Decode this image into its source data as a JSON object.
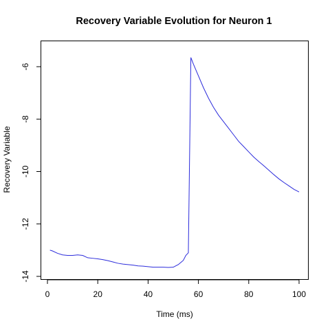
{
  "chart_data": {
    "type": "line",
    "title": "Recovery Variable Evolution for Neuron 1",
    "xlabel": "Time (ms)",
    "ylabel": "Recovery Variable",
    "xlim": [
      0,
      100
    ],
    "ylim": [
      -14,
      -5.3
    ],
    "xticks": [
      0,
      20,
      40,
      60,
      80,
      100
    ],
    "yticks": [
      -14,
      -12,
      -10,
      -8,
      -6
    ],
    "grid": false,
    "line_color": "#2b2bdb",
    "series": [
      {
        "x": [
          1,
          2,
          4,
          6,
          8,
          10,
          12,
          14,
          16,
          18,
          20,
          22,
          24,
          26,
          28,
          30,
          32,
          34,
          36,
          38,
          40,
          42,
          44,
          46,
          48,
          50,
          52,
          54,
          55,
          56,
          57,
          58,
          60,
          62,
          64,
          66,
          68,
          70,
          72,
          74,
          76,
          78,
          80,
          82,
          84,
          86,
          88,
          90,
          92,
          94,
          96,
          98,
          100
        ],
        "y": [
          -13.0,
          -13.03,
          -13.12,
          -13.18,
          -13.2,
          -13.2,
          -13.18,
          -13.2,
          -13.29,
          -13.31,
          -13.33,
          -13.36,
          -13.4,
          -13.45,
          -13.5,
          -13.53,
          -13.55,
          -13.57,
          -13.6,
          -13.61,
          -13.63,
          -13.65,
          -13.65,
          -13.65,
          -13.66,
          -13.65,
          -13.55,
          -13.39,
          -13.2,
          -13.1,
          -5.65,
          -5.9,
          -6.35,
          -6.8,
          -7.2,
          -7.55,
          -7.85,
          -8.1,
          -8.35,
          -8.6,
          -8.85,
          -9.05,
          -9.25,
          -9.45,
          -9.62,
          -9.78,
          -9.95,
          -10.12,
          -10.28,
          -10.42,
          -10.55,
          -10.68,
          -10.78
        ]
      }
    ]
  }
}
